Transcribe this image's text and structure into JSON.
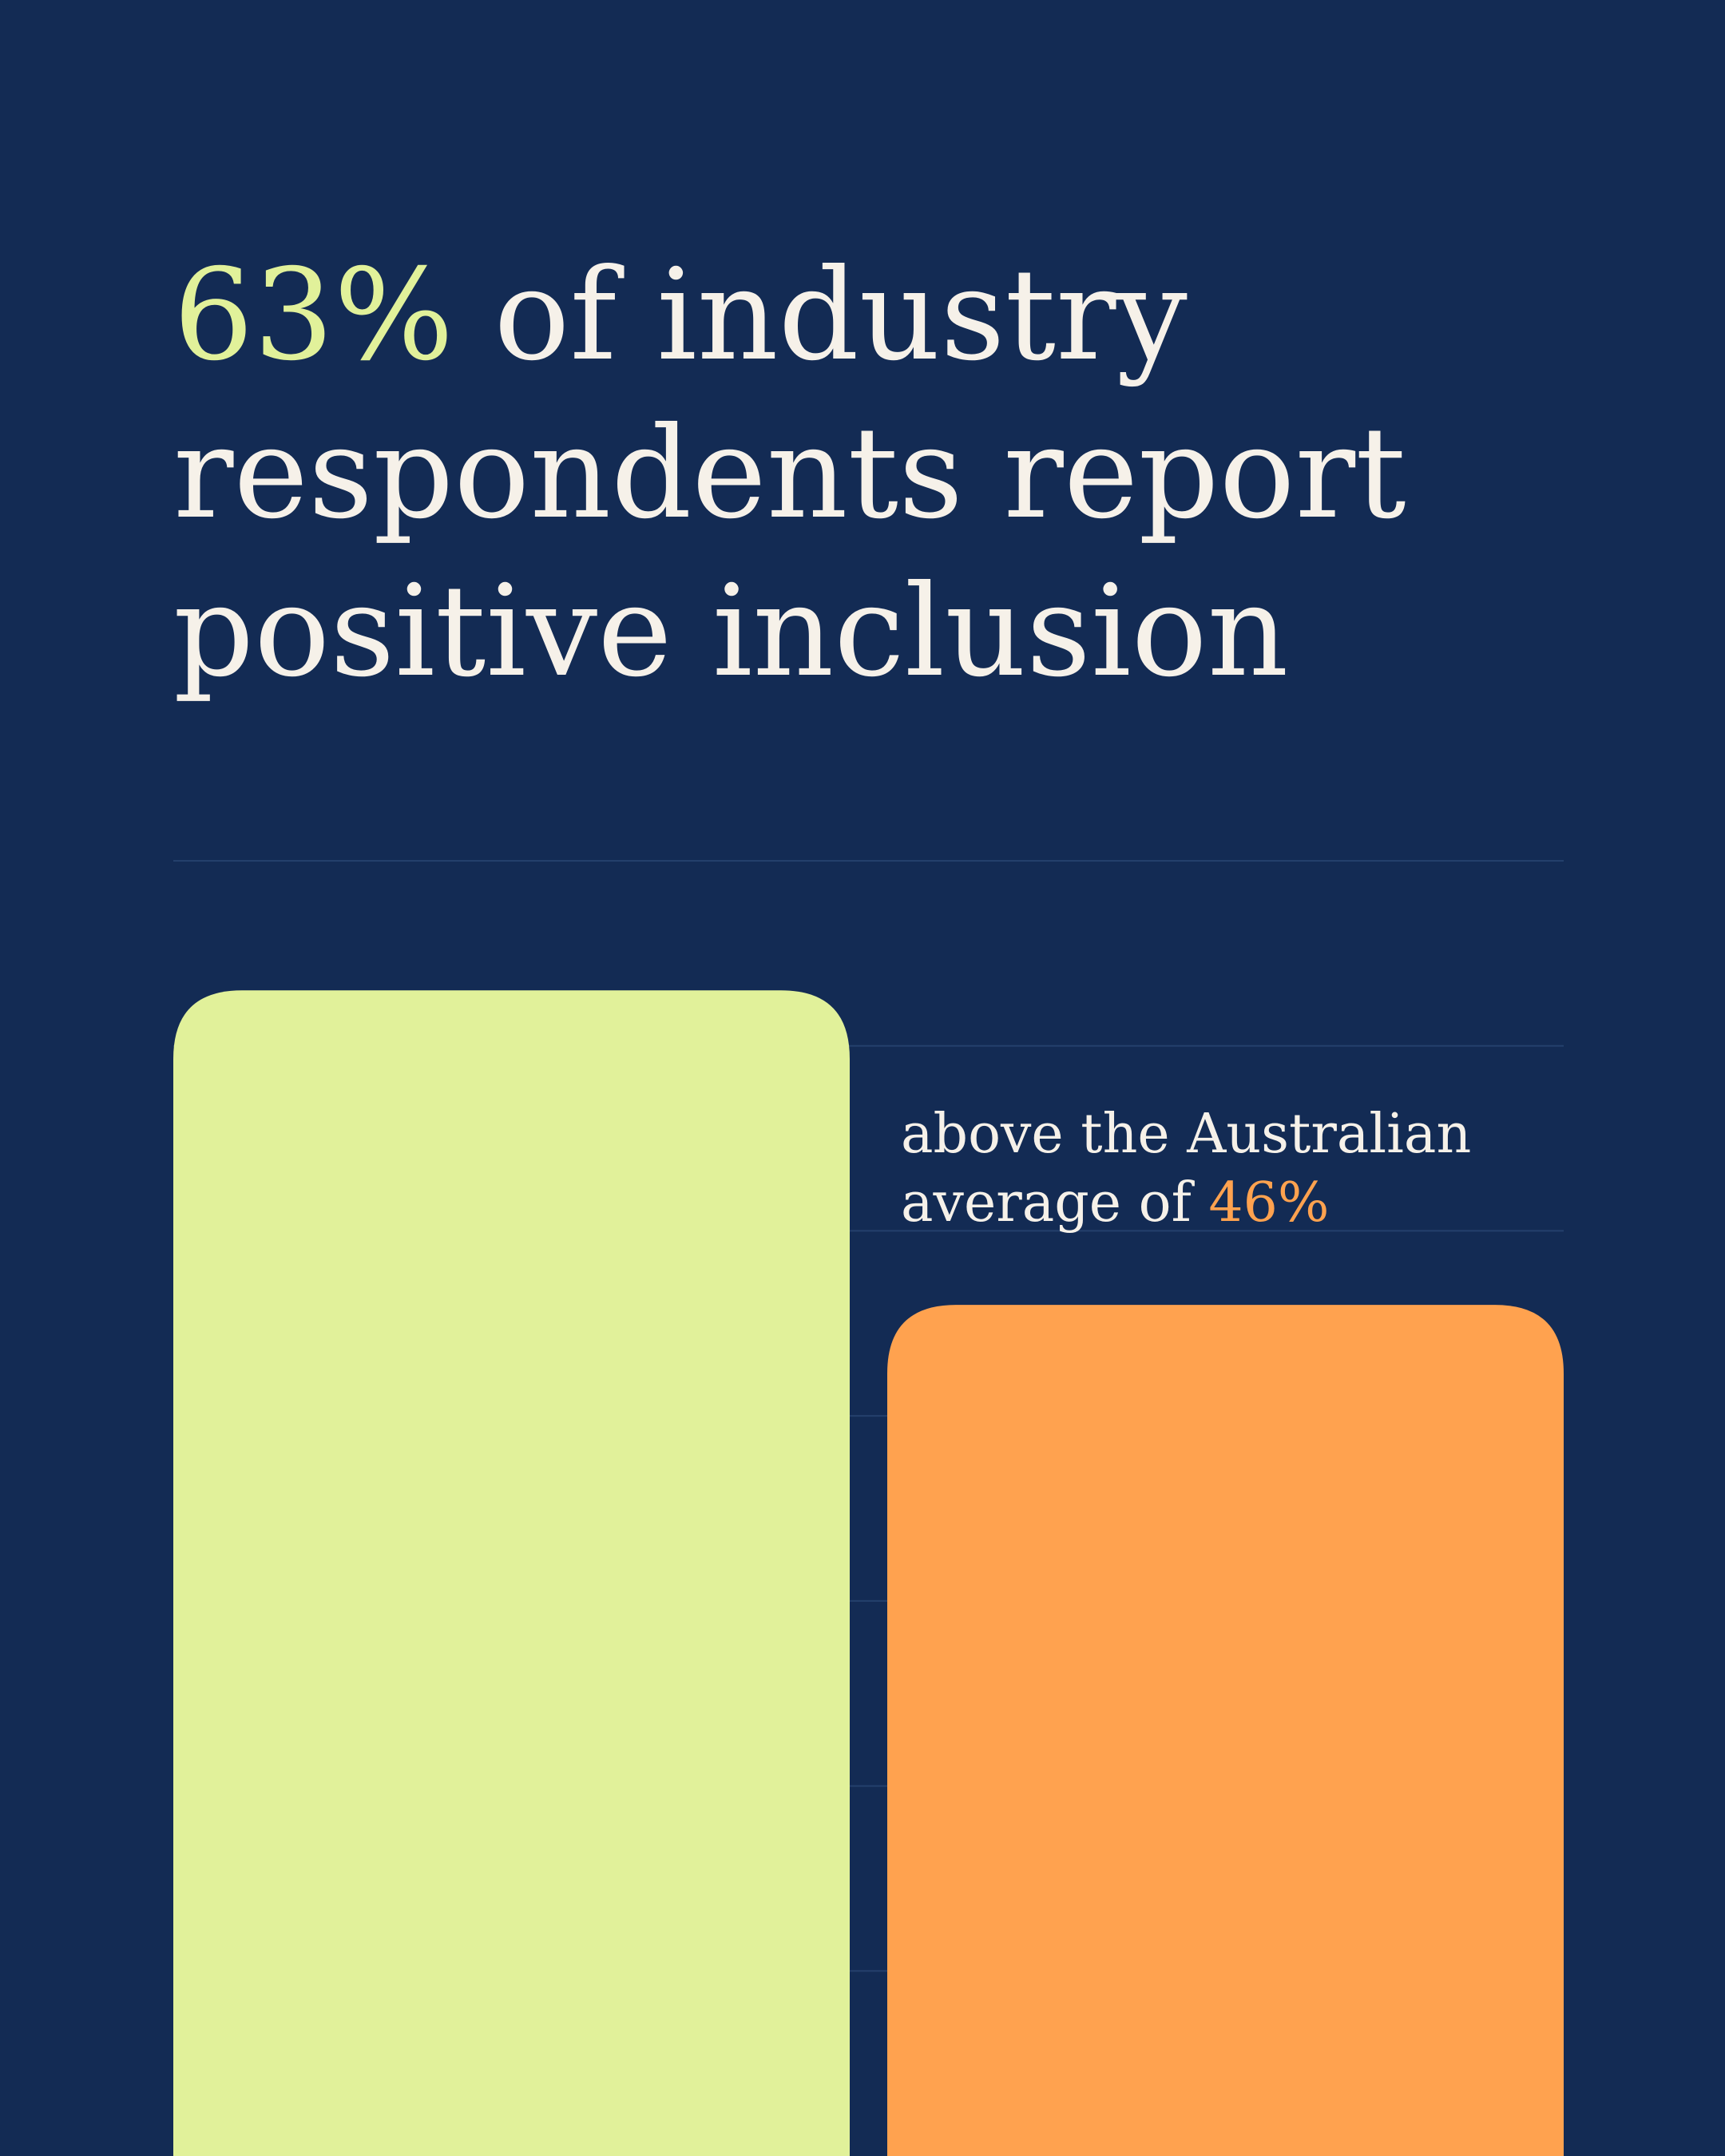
{
  "chart_data": {
    "type": "bar",
    "title": "of industry respondents report positive inclusion",
    "annotation": "above the Australian average of",
    "categories": [
      null,
      null
    ],
    "values": [
      63,
      46
    ],
    "value_labels": [
      "63%",
      "46%"
    ],
    "colors": [
      "#e1f19a",
      "#ffa24f"
    ],
    "ylim": [
      0,
      70
    ],
    "yticks": [
      10,
      20,
      30,
      40,
      50,
      60,
      70
    ],
    "grid": true
  }
}
